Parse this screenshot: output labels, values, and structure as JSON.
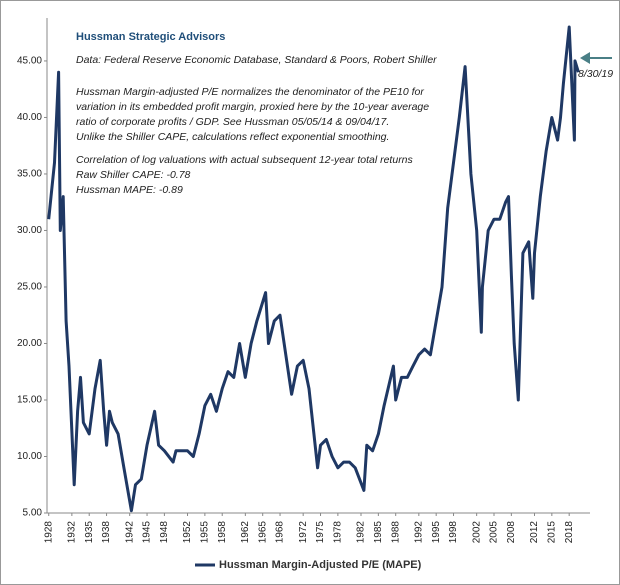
{
  "chart_data": {
    "type": "line",
    "title": "Hussman Strategic Advisors",
    "annotations": [
      "Data: Federal Reserve Economic Database, Standard & Poors, Robert Shiller",
      "Hussman Margin-adjusted P/E normalizes the denominator of the PE10 for",
      "variation in its embedded profit margin, proxied here by the 10-year average",
      "ratio of corporate profits / GDP. See Hussman 05/05/14 & 09/04/17.",
      "Unlike the Shiller CAPE, calculations reflect exponential smoothing.",
      "Correlation of log valuations with actual subsequent 12-year total returns",
      "Raw Shiller CAPE: -0.78",
      "Hussman MAPE: -0.89"
    ],
    "arrow_label": "8/30/19",
    "x": [
      1928,
      1929,
      1929.7,
      1930,
      1930.5,
      1931,
      1931.5,
      1932.4,
      1933,
      1933.5,
      1934,
      1935,
      1936,
      1936.9,
      1937.5,
      1938,
      1938.5,
      1939,
      1940,
      1941,
      1942.3,
      1943,
      1944,
      1945,
      1946.3,
      1947,
      1948,
      1949.5,
      1950,
      1951,
      1952,
      1953,
      1954,
      1955,
      1956,
      1957,
      1958,
      1959,
      1960,
      1961,
      1962,
      1963,
      1964,
      1965.5,
      1966,
      1967,
      1968,
      1969,
      1970,
      1971,
      1972,
      1973,
      1974.5,
      1975,
      1976,
      1977,
      1978,
      1979,
      1980,
      1981,
      1982.5,
      1983,
      1984,
      1985,
      1986,
      1987.6,
      1988,
      1989,
      1990,
      1991,
      1992,
      1993,
      1994,
      1995,
      1996,
      1997,
      1998,
      1999,
      2000,
      2001,
      2002,
      2002.8,
      2003,
      2004,
      2005,
      2006,
      2007,
      2007.5,
      2008,
      2008.5,
      2009.2,
      2010,
      2011,
      2011.7,
      2012,
      2013,
      2014,
      2015,
      2016,
      2016.5,
      2017,
      2018,
      2018.9,
      2019,
      2019.6
    ],
    "series": [
      {
        "name": "Hussman Margin-Adjusted P/E (MAPE)",
        "color": "#1f3864",
        "values": [
          31,
          36,
          44,
          30,
          33,
          22,
          18,
          7.5,
          14,
          17,
          13,
          12,
          16,
          18.5,
          14,
          11,
          14,
          13,
          12,
          9,
          5.2,
          7.5,
          8,
          11,
          14,
          11,
          10.5,
          9.5,
          10.5,
          10.5,
          10.5,
          10,
          12,
          14.5,
          15.5,
          14,
          16,
          17.5,
          17,
          20,
          17,
          20,
          22,
          24.5,
          20,
          22,
          22.5,
          19,
          15.5,
          18,
          18.5,
          16,
          9,
          11,
          11.5,
          10,
          9,
          9.5,
          9.5,
          9,
          7,
          11,
          10.5,
          12,
          14.5,
          18,
          15,
          17,
          17,
          18,
          19,
          19.5,
          19,
          22,
          25,
          32,
          36,
          40,
          44.5,
          35,
          30,
          21,
          25,
          30,
          31,
          31,
          32.5,
          33,
          26,
          20,
          15,
          28,
          29,
          24,
          28,
          33,
          37,
          40,
          38,
          40,
          43,
          48,
          38,
          45,
          44
        ]
      }
    ],
    "xlim": [
      1927.7,
      2021.6
    ],
    "xticks": [
      1928,
      1932,
      1935,
      1938,
      1942,
      1945,
      1948,
      1952,
      1955,
      1958,
      1962,
      1965,
      1968,
      1972,
      1975,
      1978,
      1982,
      1985,
      1988,
      1992,
      1995,
      1998,
      2002,
      2005,
      2008,
      2012,
      2015,
      2018
    ],
    "ylim": [
      5,
      48.8
    ],
    "yticks": [
      {
        "value": 5,
        "label": "5.00"
      },
      {
        "value": 10,
        "label": "10.00"
      },
      {
        "value": 15,
        "label": "15.00"
      },
      {
        "value": 20,
        "label": "20.00"
      },
      {
        "value": 25,
        "label": "25.00"
      },
      {
        "value": 30,
        "label": "30.00"
      },
      {
        "value": 35,
        "label": "35.00"
      },
      {
        "value": 40,
        "label": "40.00"
      },
      {
        "value": 45,
        "label": "45.00"
      }
    ],
    "grid": false
  }
}
